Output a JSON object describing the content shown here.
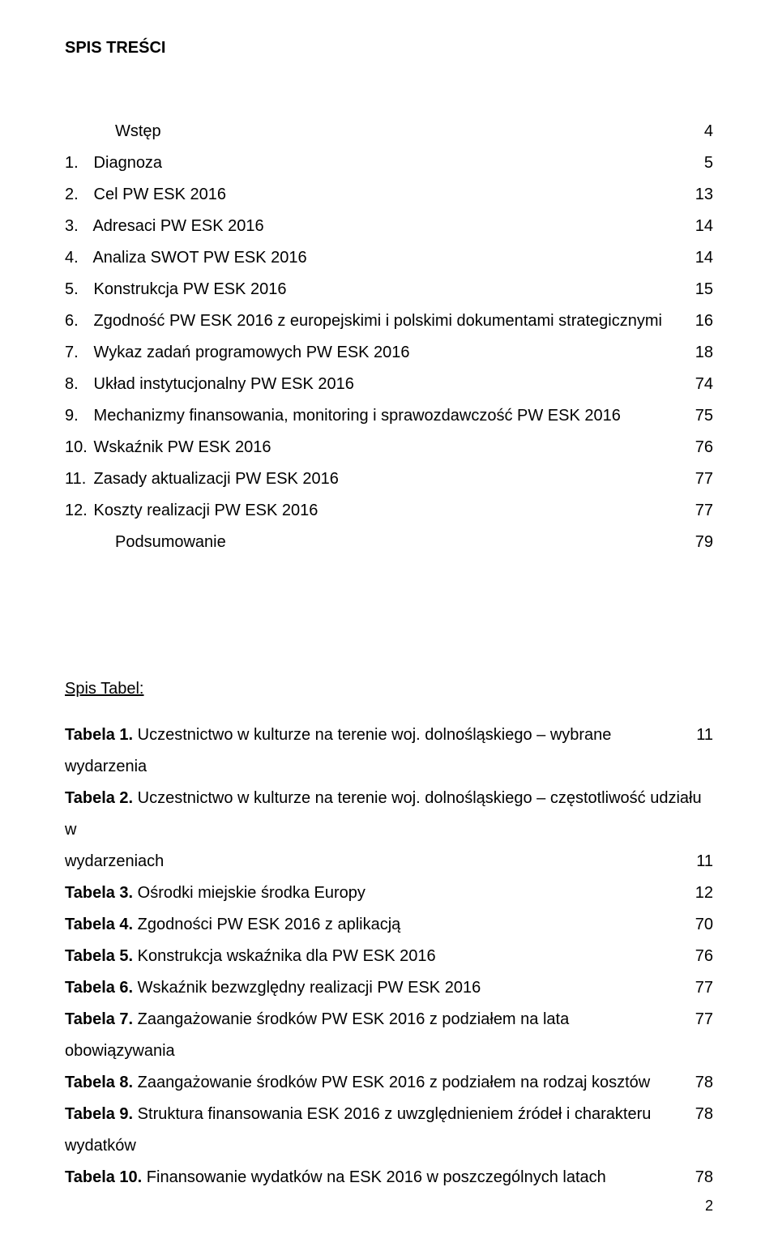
{
  "title": "SPIS TREŚCI",
  "toc": [
    {
      "num": "",
      "label": "Wstęp",
      "page": "4",
      "indent": "wstep"
    },
    {
      "num": "1.",
      "label": "Diagnoza",
      "page": "5"
    },
    {
      "num": "2.",
      "label": "Cel PW ESK 2016",
      "page": "13"
    },
    {
      "num": "3.",
      "label": "Adresaci PW ESK 2016",
      "page": "14"
    },
    {
      "num": "4.",
      "label": "Analiza SWOT PW ESK 2016",
      "page": "14"
    },
    {
      "num": "5.",
      "label": "Konstrukcja PW ESK 2016",
      "page": "15"
    },
    {
      "num": "6.",
      "label": "Zgodność PW ESK 2016 z europejskimi i polskimi dokumentami strategicznymi",
      "page": "16"
    },
    {
      "num": "7.",
      "label": "Wykaz zadań programowych PW ESK 2016",
      "page": "18"
    },
    {
      "num": "8.",
      "label": "Układ instytucjonalny PW ESK 2016",
      "page": "74"
    },
    {
      "num": "9.",
      "label": "Mechanizmy finansowania, monitoring i sprawozdawczość PW ESK 2016",
      "page": "75"
    },
    {
      "num": "10.",
      "label": "Wskaźnik PW ESK 2016",
      "page": "76"
    },
    {
      "num": "11.",
      "label": "Zasady aktualizacji PW ESK 2016",
      "page": "77"
    },
    {
      "num": "12.",
      "label": "Koszty realizacji PW ESK 2016",
      "page": "77"
    },
    {
      "num": "",
      "label": "Podsumowanie",
      "page": "79",
      "indent": "podsum"
    }
  ],
  "tables_heading": "Spis Tabel:",
  "tables": [
    {
      "bold": "Tabela 1.",
      "rest": " Uczestnictwo w kulturze na terenie woj. dolnośląskiego – wybrane wydarzenia",
      "page": "11"
    },
    {
      "bold": "Tabela 2.",
      "rest": " Uczestnictwo w kulturze na terenie woj. dolnośląskiego – częstotliwość udziału w",
      "cont": "wydarzeniach",
      "page": "11"
    },
    {
      "bold": "Tabela 3.",
      "rest": " Ośrodki miejskie środka Europy",
      "page": "12"
    },
    {
      "bold": "Tabela 4.",
      "rest": " Zgodności PW ESK 2016 z aplikacją",
      "page": "70"
    },
    {
      "bold": "Tabela 5.",
      "rest": " Konstrukcja wskaźnika dla PW ESK 2016",
      "page": "76"
    },
    {
      "bold": "Tabela 6.",
      "rest": " Wskaźnik bezwzględny realizacji PW ESK 2016",
      "page": "77"
    },
    {
      "bold": "Tabela 7.",
      "rest": " Zaangażowanie środków PW ESK 2016 z podziałem na lata obowiązywania",
      "page": "77"
    },
    {
      "bold": "Tabela 8.",
      "rest": " Zaangażowanie środków PW ESK 2016 z podziałem na rodzaj kosztów",
      "page": "78"
    },
    {
      "bold": "Tabela 9.",
      "rest": " Struktura finansowania ESK 2016 z uwzględnieniem źródeł i charakteru wydatków",
      "page": "78"
    },
    {
      "bold": "Tabela 10.",
      "rest": " Finansowanie wydatków na ESK 2016 w poszczególnych latach",
      "page": "78"
    }
  ],
  "page_number": "2"
}
